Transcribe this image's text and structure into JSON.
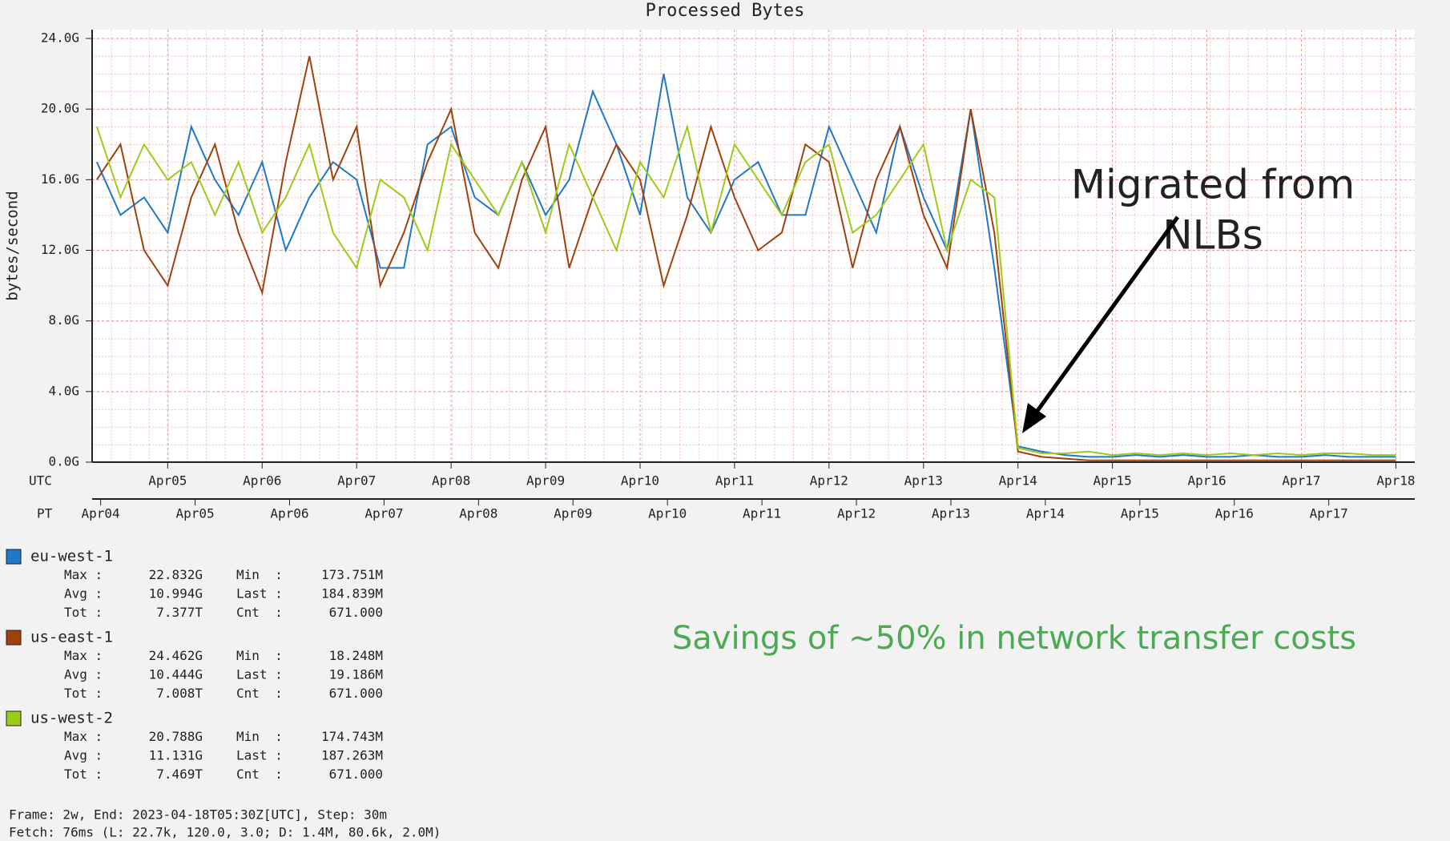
{
  "chart_data": {
    "type": "line",
    "title": "Processed Bytes",
    "ylabel": "bytes/second",
    "x_axis_label": "UTC",
    "x2_axis_label": "PT",
    "x": [
      0.25,
      0.5,
      0.75,
      1,
      1.25,
      1.5,
      1.75,
      2,
      2.25,
      2.5,
      2.75,
      3,
      3.25,
      3.5,
      3.75,
      4,
      4.25,
      4.5,
      4.75,
      5,
      5.25,
      5.5,
      5.75,
      6,
      6.25,
      6.5,
      6.75,
      7,
      7.25,
      7.5,
      7.75,
      8,
      8.25,
      8.5,
      8.75,
      9,
      9.25,
      9.5,
      9.75,
      10,
      10.25,
      10.5,
      10.75,
      11,
      11.25,
      11.5,
      11.75,
      12,
      12.25,
      12.5,
      12.75,
      13,
      13.25,
      13.5,
      13.75,
      14
    ],
    "xlim": [
      0.2,
      14.2
    ],
    "xticks": [
      {
        "value": 1,
        "label": "Apr05"
      },
      {
        "value": 2,
        "label": "Apr06"
      },
      {
        "value": 3,
        "label": "Apr07"
      },
      {
        "value": 4,
        "label": "Apr08"
      },
      {
        "value": 5,
        "label": "Apr09"
      },
      {
        "value": 6,
        "label": "Apr10"
      },
      {
        "value": 7,
        "label": "Apr11"
      },
      {
        "value": 8,
        "label": "Apr12"
      },
      {
        "value": 9,
        "label": "Apr13"
      },
      {
        "value": 10,
        "label": "Apr14"
      },
      {
        "value": 11,
        "label": "Apr15"
      },
      {
        "value": 12,
        "label": "Apr16"
      },
      {
        "value": 13,
        "label": "Apr17"
      },
      {
        "value": 14,
        "label": "Apr18"
      }
    ],
    "x2ticks": [
      {
        "value": 0.29,
        "label": "Apr04"
      },
      {
        "value": 1.29,
        "label": "Apr05"
      },
      {
        "value": 2.29,
        "label": "Apr06"
      },
      {
        "value": 3.29,
        "label": "Apr07"
      },
      {
        "value": 4.29,
        "label": "Apr08"
      },
      {
        "value": 5.29,
        "label": "Apr09"
      },
      {
        "value": 6.29,
        "label": "Apr10"
      },
      {
        "value": 7.29,
        "label": "Apr11"
      },
      {
        "value": 8.29,
        "label": "Apr12"
      },
      {
        "value": 9.29,
        "label": "Apr13"
      },
      {
        "value": 10.29,
        "label": "Apr14"
      },
      {
        "value": 11.29,
        "label": "Apr15"
      },
      {
        "value": 12.29,
        "label": "Apr16"
      },
      {
        "value": 13.29,
        "label": "Apr17"
      }
    ],
    "ylim": [
      0,
      24.5
    ],
    "yticks": [
      {
        "value": 0,
        "label": "0.0G"
      },
      {
        "value": 4,
        "label": "4.0G"
      },
      {
        "value": 8,
        "label": "8.0G"
      },
      {
        "value": 12,
        "label": "12.0G"
      },
      {
        "value": 16,
        "label": "16.0G"
      },
      {
        "value": 20,
        "label": "20.0G"
      },
      {
        "value": 24,
        "label": "24.0G"
      }
    ],
    "grid": true,
    "series": [
      {
        "name": "eu-west-1",
        "color": "#1f78c8",
        "values": [
          17,
          14,
          15,
          13,
          19,
          16,
          14,
          17,
          12,
          15,
          17,
          16,
          11,
          11,
          18,
          19,
          15,
          14,
          17,
          14,
          16,
          21,
          18,
          14,
          22,
          15,
          13,
          16,
          17,
          14,
          14,
          19,
          16,
          13,
          19,
          15,
          12,
          20,
          11,
          0.9,
          0.6,
          0.4,
          0.3,
          0.3,
          0.4,
          0.3,
          0.4,
          0.3,
          0.3,
          0.4,
          0.3,
          0.3,
          0.4,
          0.3,
          0.3,
          0.3
        ],
        "stats": [
          [
            "Max :",
            "22.832G",
            "Min  :",
            "173.751M"
          ],
          [
            "Avg :",
            "10.994G",
            "Last :",
            "184.839M"
          ],
          [
            "Tot :",
            "7.377T",
            "Cnt  :",
            "671.000"
          ]
        ]
      },
      {
        "name": "us-east-1",
        "color": "#a0410d",
        "values": [
          16,
          18,
          12,
          10,
          15,
          18,
          13,
          9.6,
          17,
          23,
          16,
          19,
          10,
          13,
          17,
          20,
          13,
          11,
          16,
          19,
          11,
          15,
          18,
          16,
          10,
          14,
          19,
          15,
          12,
          13,
          18,
          17,
          11,
          16,
          19,
          14,
          11,
          20,
          13,
          0.6,
          0.3,
          0.2,
          0.1,
          0.1,
          0.1,
          0.1,
          0.1,
          0.1,
          0.1,
          0.1,
          0.1,
          0.1,
          0.1,
          0.1,
          0.1,
          0.1
        ],
        "stats": [
          [
            "Max :",
            "24.462G",
            "Min  :",
            "18.248M"
          ],
          [
            "Avg :",
            "10.444G",
            "Last :",
            "19.186M"
          ],
          [
            "Tot :",
            "7.008T",
            "Cnt  :",
            "671.000"
          ]
        ]
      },
      {
        "name": "us-west-2",
        "color": "#9ccb19",
        "values": [
          19,
          15,
          18,
          16,
          17,
          14,
          17,
          13,
          15,
          18,
          13,
          11,
          16,
          15,
          12,
          18,
          16,
          14,
          17,
          13,
          18,
          15,
          12,
          17,
          15,
          19,
          13,
          18,
          16,
          14,
          17,
          18,
          13,
          14,
          16,
          18,
          12,
          16,
          15,
          0.8,
          0.5,
          0.5,
          0.6,
          0.4,
          0.5,
          0.4,
          0.5,
          0.4,
          0.5,
          0.4,
          0.5,
          0.4,
          0.5,
          0.5,
          0.4,
          0.4
        ],
        "stats": [
          [
            "Max :",
            "20.788G",
            "Min  :",
            "174.743M"
          ],
          [
            "Avg :",
            "11.131G",
            "Last :",
            "187.263M"
          ],
          [
            "Tot :",
            "7.469T",
            "Cnt  :",
            "671.000"
          ]
        ]
      }
    ],
    "annotation": [
      "Migrated from",
      "NLBs"
    ],
    "note": "Savings of ~50% in network transfer costs",
    "footer": [
      "Frame: 2w, End: 2023-04-18T05:30Z[UTC], Step: 30m",
      "Fetch: 76ms (L: 22.7k, 120.0, 3.0; D: 1.4M, 80.6k, 2.0M)"
    ]
  }
}
